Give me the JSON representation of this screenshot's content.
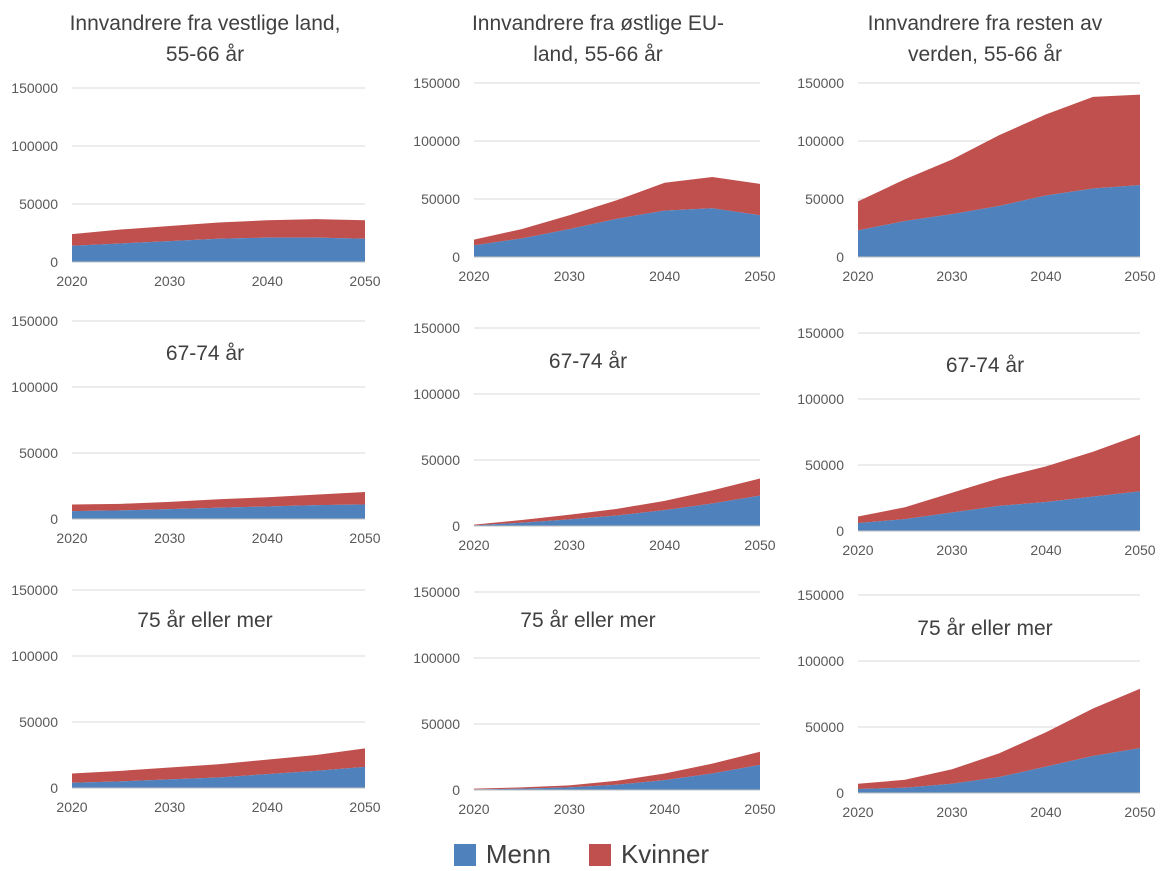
{
  "legend": [
    {
      "name": "Menn",
      "color": "#4f81bd"
    },
    {
      "name": "Kvinner",
      "color": "#c0504d"
    }
  ],
  "chart_data": [
    {
      "type": "area",
      "stacked": true,
      "title": "Innvandrere fra vestlige land, 55-66 år",
      "x": [
        2020,
        2025,
        2030,
        2035,
        2040,
        2045,
        2050
      ],
      "xticks": [
        2020,
        2030,
        2040,
        2050
      ],
      "ylim": [
        0,
        150000
      ],
      "yticks": [
        0,
        50000,
        100000,
        150000
      ],
      "grid": true,
      "series": [
        {
          "name": "Menn",
          "color": "#4f81bd",
          "values": [
            14000,
            16000,
            18000,
            20000,
            21000,
            21000,
            20000
          ]
        },
        {
          "name": "Kvinner",
          "color": "#c0504d",
          "values": [
            10000,
            12000,
            13000,
            14000,
            15000,
            16000,
            16000
          ]
        }
      ]
    },
    {
      "type": "area",
      "stacked": true,
      "title": "Innvandrere fra østlige EU-land, 55-66 år",
      "x": [
        2020,
        2025,
        2030,
        2035,
        2040,
        2045,
        2050
      ],
      "xticks": [
        2020,
        2030,
        2040,
        2050
      ],
      "ylim": [
        0,
        150000
      ],
      "yticks": [
        0,
        50000,
        100000,
        150000
      ],
      "grid": true,
      "series": [
        {
          "name": "Menn",
          "color": "#4f81bd",
          "values": [
            10000,
            16000,
            24000,
            33000,
            40000,
            42000,
            36000
          ]
        },
        {
          "name": "Kvinner",
          "color": "#c0504d",
          "values": [
            5000,
            8000,
            12000,
            16000,
            24000,
            27000,
            27000
          ]
        }
      ]
    },
    {
      "type": "area",
      "stacked": true,
      "title": "Innvandrere fra resten av verden, 55-66 år",
      "x": [
        2020,
        2025,
        2030,
        2035,
        2040,
        2045,
        2050
      ],
      "xticks": [
        2020,
        2030,
        2040,
        2050
      ],
      "ylim": [
        0,
        150000
      ],
      "yticks": [
        0,
        50000,
        100000,
        150000
      ],
      "grid": true,
      "series": [
        {
          "name": "Menn",
          "color": "#4f81bd",
          "values": [
            23000,
            31000,
            37000,
            44000,
            53000,
            59000,
            62000
          ]
        },
        {
          "name": "Kvinner",
          "color": "#c0504d",
          "values": [
            25000,
            36000,
            47000,
            61000,
            70000,
            79000,
            78000
          ]
        }
      ]
    },
    {
      "type": "area",
      "stacked": true,
      "title": "67-74 år",
      "x": [
        2020,
        2025,
        2030,
        2035,
        2040,
        2045,
        2050
      ],
      "xticks": [
        2020,
        2030,
        2040,
        2050
      ],
      "ylim": [
        0,
        150000
      ],
      "yticks": [
        0,
        50000,
        100000,
        150000
      ],
      "grid": true,
      "series": [
        {
          "name": "Menn",
          "color": "#4f81bd",
          "values": [
            6000,
            6500,
            7500,
            8500,
            9500,
            10500,
            11000
          ]
        },
        {
          "name": "Kvinner",
          "color": "#c0504d",
          "values": [
            5000,
            5000,
            5500,
            6500,
            7000,
            8000,
            9500
          ]
        }
      ]
    },
    {
      "type": "area",
      "stacked": true,
      "title": "67-74 år",
      "x": [
        2020,
        2025,
        2030,
        2035,
        2040,
        2045,
        2050
      ],
      "xticks": [
        2020,
        2030,
        2040,
        2050
      ],
      "ylim": [
        0,
        150000
      ],
      "yticks": [
        0,
        50000,
        100000,
        150000
      ],
      "grid": true,
      "series": [
        {
          "name": "Menn",
          "color": "#4f81bd",
          "values": [
            500,
            2500,
            5000,
            8000,
            12000,
            17000,
            23000
          ]
        },
        {
          "name": "Kvinner",
          "color": "#c0504d",
          "values": [
            500,
            2000,
            3500,
            5000,
            7000,
            10000,
            13000
          ]
        }
      ]
    },
    {
      "type": "area",
      "stacked": true,
      "title": "67-74 år",
      "x": [
        2020,
        2025,
        2030,
        2035,
        2040,
        2045,
        2050
      ],
      "xticks": [
        2020,
        2030,
        2040,
        2050
      ],
      "ylim": [
        0,
        150000
      ],
      "yticks": [
        0,
        50000,
        100000,
        150000
      ],
      "grid": true,
      "series": [
        {
          "name": "Menn",
          "color": "#4f81bd",
          "values": [
            6000,
            9000,
            14000,
            19000,
            22000,
            26000,
            30000
          ]
        },
        {
          "name": "Kvinner",
          "color": "#c0504d",
          "values": [
            5000,
            9000,
            15000,
            21000,
            27000,
            34000,
            43000
          ]
        }
      ]
    },
    {
      "type": "area",
      "stacked": true,
      "title": "75 år eller mer",
      "x": [
        2020,
        2025,
        2030,
        2035,
        2040,
        2045,
        2050
      ],
      "xticks": [
        2020,
        2030,
        2040,
        2050
      ],
      "ylim": [
        0,
        150000
      ],
      "yticks": [
        0,
        50000,
        100000,
        150000
      ],
      "grid": true,
      "series": [
        {
          "name": "Menn",
          "color": "#4f81bd",
          "values": [
            4000,
            5000,
            6500,
            8000,
            10500,
            13000,
            16000
          ]
        },
        {
          "name": "Kvinner",
          "color": "#c0504d",
          "values": [
            7000,
            8000,
            9000,
            10000,
            11000,
            12000,
            14000
          ]
        }
      ]
    },
    {
      "type": "area",
      "stacked": true,
      "title": "75 år eller mer",
      "x": [
        2020,
        2025,
        2030,
        2035,
        2040,
        2045,
        2050
      ],
      "xticks": [
        2020,
        2030,
        2040,
        2050
      ],
      "ylim": [
        0,
        150000
      ],
      "yticks": [
        0,
        50000,
        100000,
        150000
      ],
      "grid": true,
      "series": [
        {
          "name": "Menn",
          "color": "#4f81bd",
          "values": [
            500,
            1000,
            2000,
            4000,
            7500,
            12500,
            19000
          ]
        },
        {
          "name": "Kvinner",
          "color": "#c0504d",
          "values": [
            500,
            1000,
            1500,
            3000,
            5000,
            7500,
            10000
          ]
        }
      ]
    },
    {
      "type": "area",
      "stacked": true,
      "title": "75 år eller mer",
      "x": [
        2020,
        2025,
        2030,
        2035,
        2040,
        2045,
        2050
      ],
      "xticks": [
        2020,
        2030,
        2040,
        2050
      ],
      "ylim": [
        0,
        150000
      ],
      "yticks": [
        0,
        50000,
        100000,
        150000
      ],
      "grid": true,
      "series": [
        {
          "name": "Menn",
          "color": "#4f81bd",
          "values": [
            3000,
            4000,
            7000,
            12000,
            20000,
            28000,
            34000
          ]
        },
        {
          "name": "Kvinner",
          "color": "#c0504d",
          "values": [
            4000,
            6000,
            11000,
            18000,
            26000,
            36000,
            45000
          ]
        }
      ]
    }
  ]
}
